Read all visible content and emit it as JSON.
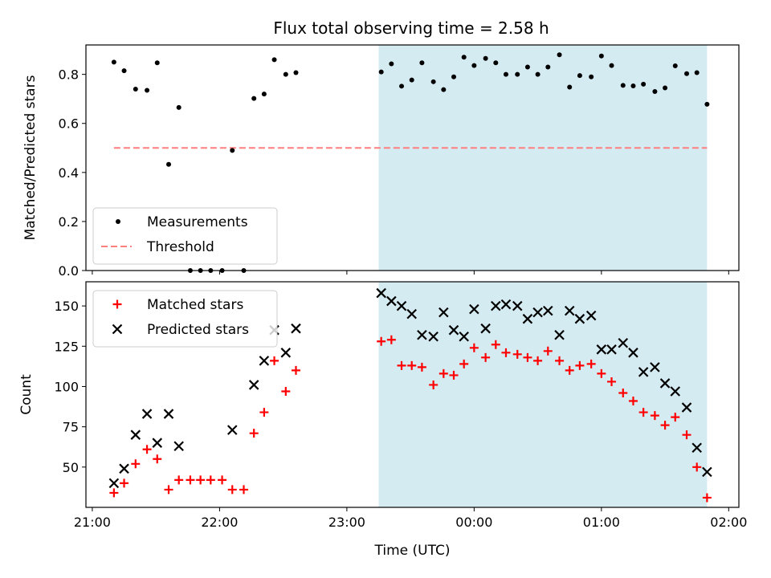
{
  "figure": {
    "title": "Flux total observing time = 2.58 h"
  },
  "chart_data": [
    {
      "type": "scatter",
      "panel": "top",
      "title": "Flux total observing time = 2.58 h",
      "ylabel": "Matched/Predicted stars",
      "xlabel": "",
      "x_unit": "hours since 21:00 UTC",
      "xlim": [
        -0.05,
        5.08
      ],
      "ylim": [
        0,
        0.92
      ],
      "yticks": [
        0.0,
        0.2,
        0.4,
        0.6,
        0.8
      ],
      "ytick_labels": [
        "0.0",
        "0.2",
        "0.4",
        "0.6",
        "0.8"
      ],
      "xticks": [
        0,
        1,
        2,
        3,
        4,
        5
      ],
      "xtick_labels": [],
      "shaded_region": {
        "x0": 2.25,
        "x1": 4.83,
        "color": "#add8e6"
      },
      "threshold": {
        "name": "Threshold",
        "y": 0.5,
        "x0": 0.17,
        "x1": 4.83,
        "color": "#ff7f7f",
        "style": "dashed"
      },
      "legend": {
        "location": "lower left",
        "entries": [
          "Measurements",
          "Threshold"
        ]
      },
      "series": [
        {
          "name": "Measurements",
          "marker": "dot",
          "color": "#000000",
          "points": [
            [
              0.17,
              0.85
            ],
            [
              0.25,
              0.815
            ],
            [
              0.34,
              0.74
            ],
            [
              0.43,
              0.735
            ],
            [
              0.51,
              0.847
            ],
            [
              0.6,
              0.433
            ],
            [
              0.68,
              0.665
            ],
            [
              0.77,
              0.0
            ],
            [
              0.85,
              0.0
            ],
            [
              0.93,
              0.0
            ],
            [
              1.02,
              0.0
            ],
            [
              1.1,
              0.49
            ],
            [
              1.19,
              0.0
            ],
            [
              1.27,
              0.702
            ],
            [
              1.35,
              0.72
            ],
            [
              1.43,
              0.86
            ],
            [
              1.52,
              0.8
            ],
            [
              1.6,
              0.807
            ],
            [
              2.27,
              0.81
            ],
            [
              2.35,
              0.843
            ],
            [
              2.43,
              0.752
            ],
            [
              2.51,
              0.777
            ],
            [
              2.59,
              0.847
            ],
            [
              2.68,
              0.77
            ],
            [
              2.76,
              0.738
            ],
            [
              2.84,
              0.79
            ],
            [
              2.92,
              0.87
            ],
            [
              3.0,
              0.836
            ],
            [
              3.09,
              0.865
            ],
            [
              3.17,
              0.847
            ],
            [
              3.25,
              0.8
            ],
            [
              3.34,
              0.8
            ],
            [
              3.42,
              0.83
            ],
            [
              3.5,
              0.8
            ],
            [
              3.58,
              0.83
            ],
            [
              3.67,
              0.88
            ],
            [
              3.75,
              0.748
            ],
            [
              3.83,
              0.795
            ],
            [
              3.92,
              0.79
            ],
            [
              4.0,
              0.875
            ],
            [
              4.08,
              0.836
            ],
            [
              4.17,
              0.755
            ],
            [
              4.25,
              0.753
            ],
            [
              4.33,
              0.76
            ],
            [
              4.42,
              0.73
            ],
            [
              4.5,
              0.745
            ],
            [
              4.58,
              0.835
            ],
            [
              4.67,
              0.803
            ],
            [
              4.75,
              0.807
            ],
            [
              4.83,
              0.678
            ]
          ]
        }
      ]
    },
    {
      "type": "scatter",
      "panel": "bottom",
      "ylabel": "Count",
      "xlabel": "Time (UTC)",
      "x_unit": "hours since 21:00 UTC",
      "xlim": [
        -0.05,
        5.08
      ],
      "ylim": [
        25,
        165
      ],
      "yticks": [
        50,
        75,
        100,
        125,
        150
      ],
      "ytick_labels": [
        "50",
        "75",
        "100",
        "125",
        "150"
      ],
      "xticks": [
        0,
        1,
        2,
        3,
        4,
        5
      ],
      "xtick_labels": [
        "21:00",
        "22:00",
        "23:00",
        "00:00",
        "01:00",
        "02:00"
      ],
      "shaded_region": {
        "x0": 2.25,
        "x1": 4.83,
        "color": "#add8e6"
      },
      "legend": {
        "location": "upper left",
        "entries": [
          "Matched stars",
          "Predicted stars"
        ]
      },
      "series": [
        {
          "name": "Matched stars",
          "marker": "plus",
          "color": "#ff0000",
          "points": [
            [
              0.17,
              34
            ],
            [
              0.25,
              40
            ],
            [
              0.34,
              52
            ],
            [
              0.43,
              61
            ],
            [
              0.51,
              55
            ],
            [
              0.6,
              36
            ],
            [
              0.68,
              42
            ],
            [
              0.77,
              42
            ],
            [
              0.85,
              42
            ],
            [
              0.93,
              42
            ],
            [
              1.02,
              42
            ],
            [
              1.1,
              36
            ],
            [
              1.19,
              36
            ],
            [
              1.27,
              71
            ],
            [
              1.35,
              84
            ],
            [
              1.43,
              116
            ],
            [
              1.52,
              97
            ],
            [
              1.6,
              110
            ],
            [
              2.27,
              128
            ],
            [
              2.35,
              129
            ],
            [
              2.43,
              113
            ],
            [
              2.51,
              113
            ],
            [
              2.59,
              112
            ],
            [
              2.68,
              101
            ],
            [
              2.76,
              108
            ],
            [
              2.84,
              107
            ],
            [
              2.92,
              114
            ],
            [
              3.0,
              124
            ],
            [
              3.09,
              118
            ],
            [
              3.17,
              126
            ],
            [
              3.25,
              121
            ],
            [
              3.34,
              120
            ],
            [
              3.42,
              118
            ],
            [
              3.5,
              116
            ],
            [
              3.58,
              122
            ],
            [
              3.67,
              116
            ],
            [
              3.75,
              110
            ],
            [
              3.83,
              113
            ],
            [
              3.92,
              114
            ],
            [
              4.0,
              108
            ],
            [
              4.08,
              103
            ],
            [
              4.17,
              96
            ],
            [
              4.25,
              91
            ],
            [
              4.33,
              84
            ],
            [
              4.42,
              82
            ],
            [
              4.5,
              76
            ],
            [
              4.58,
              81
            ],
            [
              4.67,
              70
            ],
            [
              4.75,
              50
            ],
            [
              4.83,
              31
            ]
          ]
        },
        {
          "name": "Predicted stars",
          "marker": "x",
          "color": "#000000",
          "points": [
            [
              0.17,
              40
            ],
            [
              0.25,
              49
            ],
            [
              0.34,
              70
            ],
            [
              0.43,
              83
            ],
            [
              0.51,
              65
            ],
            [
              0.6,
              83
            ],
            [
              0.68,
              63
            ],
            [
              1.1,
              73
            ],
            [
              1.27,
              101
            ],
            [
              1.35,
              116
            ],
            [
              1.43,
              135
            ],
            [
              1.52,
              121
            ],
            [
              1.6,
              136
            ],
            [
              2.27,
              158
            ],
            [
              2.35,
              153
            ],
            [
              2.43,
              150
            ],
            [
              2.51,
              145
            ],
            [
              2.59,
              132
            ],
            [
              2.68,
              131
            ],
            [
              2.76,
              146
            ],
            [
              2.84,
              135
            ],
            [
              2.92,
              131
            ],
            [
              3.0,
              148
            ],
            [
              3.09,
              136
            ],
            [
              3.17,
              150
            ],
            [
              3.25,
              151
            ],
            [
              3.34,
              150
            ],
            [
              3.42,
              142
            ],
            [
              3.5,
              146
            ],
            [
              3.58,
              147
            ],
            [
              3.67,
              132
            ],
            [
              3.75,
              147
            ],
            [
              3.83,
              142
            ],
            [
              3.92,
              144
            ],
            [
              4.0,
              123
            ],
            [
              4.08,
              123
            ],
            [
              4.17,
              127
            ],
            [
              4.25,
              121
            ],
            [
              4.33,
              109
            ],
            [
              4.42,
              112
            ],
            [
              4.5,
              102
            ],
            [
              4.58,
              97
            ],
            [
              4.67,
              87
            ],
            [
              4.75,
              62
            ],
            [
              4.83,
              47
            ]
          ]
        }
      ]
    }
  ]
}
